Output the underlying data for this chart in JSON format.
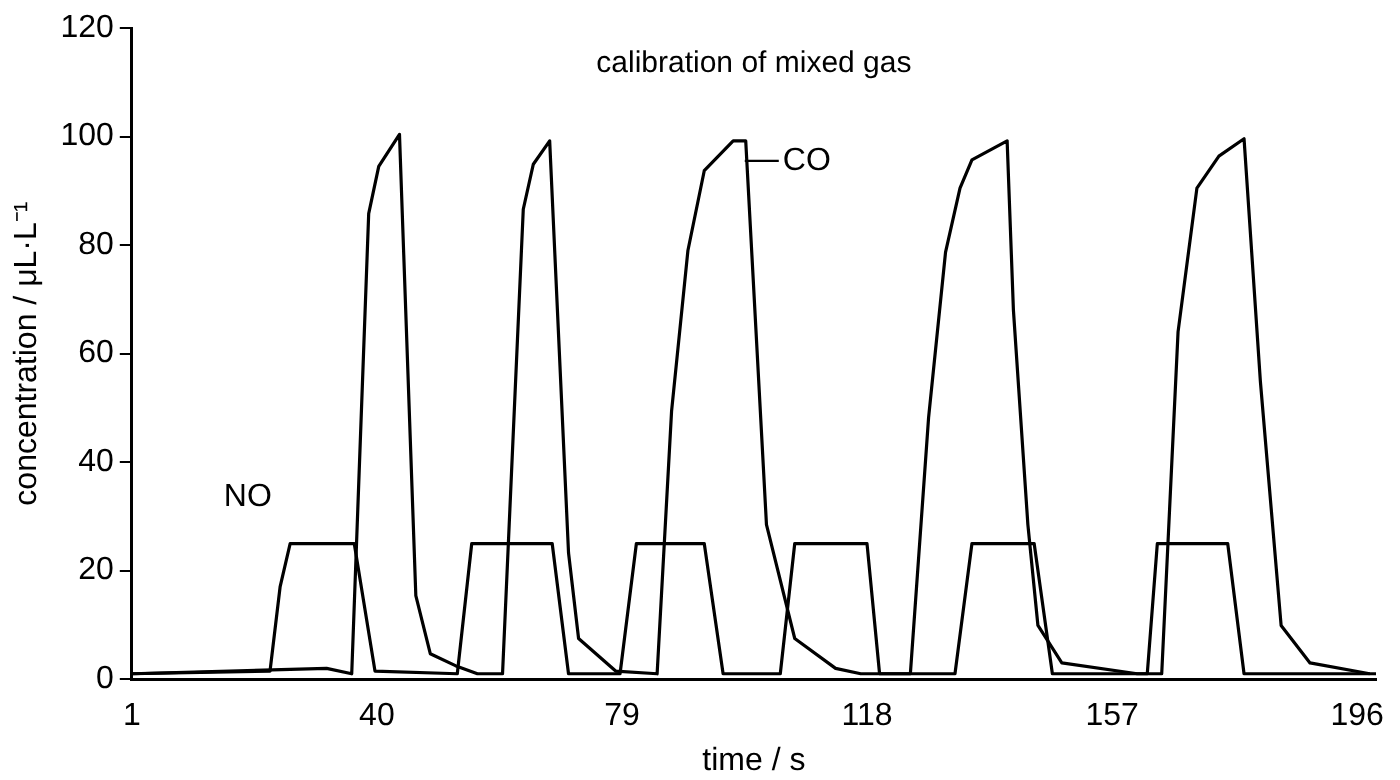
{
  "chart_data": {
    "type": "line",
    "title": "calibration of mixed gas",
    "xlabel": "time / s",
    "ylabel": "concentration / μL·L⁻¹",
    "xlim": [
      1,
      199
    ],
    "xticks": [
      1,
      40,
      79,
      118,
      157,
      196
    ],
    "ylim": [
      0,
      120
    ],
    "yticks": [
      0,
      20,
      40,
      60,
      80,
      100,
      120
    ],
    "grid": false,
    "legend": "top",
    "marker": "none",
    "line_style": "solid",
    "series": [
      {
        "name": "NO",
        "color": "#000000",
        "x": [
          1,
          23,
          24.6,
          26.2,
          36.4,
          39.7,
          52.8,
          55.1,
          67.9,
          70.5,
          78.7,
          81.3,
          92.1,
          95.1,
          104.2,
          106.5,
          118,
          120,
          132,
          134.7,
          144.6,
          147.5,
          162.6,
          164.2,
          175.4,
          178,
          199
        ],
        "values": [
          1,
          1.5,
          17,
          25,
          25,
          1.5,
          1,
          25,
          25,
          1,
          1,
          25,
          25,
          1,
          1,
          25,
          25,
          1,
          1,
          25,
          25,
          1,
          1,
          25,
          25,
          1,
          1
        ]
      },
      {
        "name": "CO",
        "color": "#000000",
        "x": [
          1,
          32,
          36,
          38.7,
          40.3,
          43.6,
          46.2,
          48.5,
          52.5,
          56,
          60,
          63.3,
          64.9,
          67.5,
          70.5,
          72.1,
          78,
          84.6,
          86.9,
          89.5,
          92.1,
          96.7,
          98.7,
          102,
          106.5,
          113,
          117,
          124.9,
          127.8,
          130.5,
          132.8,
          134.7,
          140.3,
          141.3,
          143.6,
          145.2,
          149,
          161,
          164.9,
          167.5,
          170.5,
          174,
          178,
          180.6,
          183.9,
          188.5,
          198
        ],
        "values": [
          1,
          2,
          1,
          85.8,
          94.5,
          100.4,
          15.4,
          4.7,
          2.5,
          1,
          1,
          86.6,
          94.9,
          99.2,
          23.3,
          7.5,
          1.5,
          1,
          49.4,
          79,
          93.7,
          99.2,
          99.2,
          28.5,
          7.5,
          2,
          1,
          1,
          48.2,
          78.7,
          90.5,
          95.7,
          99.2,
          68,
          28.5,
          9.9,
          3,
          1,
          1,
          64,
          90.5,
          96.4,
          99.6,
          54.9,
          9.9,
          3,
          1
        ]
      }
    ]
  }
}
